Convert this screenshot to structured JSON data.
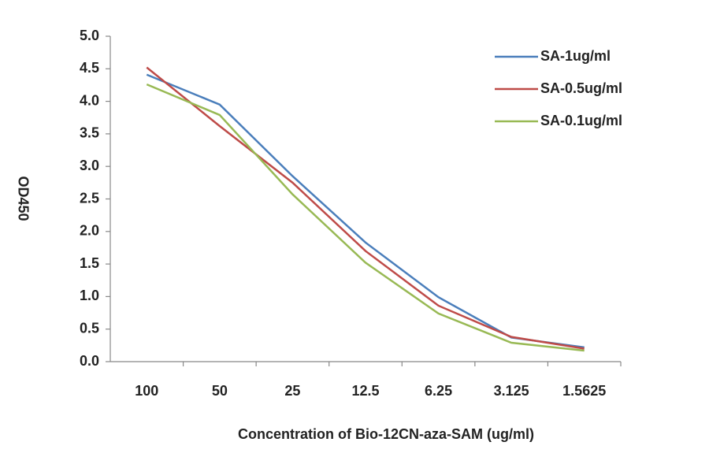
{
  "chart_data": {
    "type": "line",
    "x_label": "Concentration of Bio-12CN-aza-SAM (ug/ml)",
    "y_label": "OD450",
    "categories": [
      "100",
      "50",
      "25",
      "12.5",
      "6.25",
      "3.125",
      "1.5625"
    ],
    "series": [
      {
        "name": "SA-1ug/ml",
        "color": "#4a7ebb",
        "values": [
          4.41,
          3.95,
          2.85,
          1.83,
          0.99,
          0.37,
          0.22
        ]
      },
      {
        "name": "SA-0.5ug/ml",
        "color": "#be4b48",
        "values": [
          4.52,
          3.62,
          2.75,
          1.7,
          0.86,
          0.38,
          0.2
        ]
      },
      {
        "name": "SA-0.1ug/ml",
        "color": "#98b954",
        "values": [
          4.26,
          3.79,
          2.57,
          1.52,
          0.74,
          0.29,
          0.17
        ]
      }
    ],
    "ylim": [
      0,
      5
    ],
    "yticks": [
      {
        "value": 0,
        "label": "0.0"
      },
      0.5,
      {
        "value": 1,
        "label": "1.0"
      },
      1.5,
      {
        "value": 2,
        "label": "2.0"
      },
      2.5,
      {
        "value": 3,
        "label": "3.0"
      },
      3.5,
      {
        "value": 4,
        "label": "4.0"
      },
      4.5,
      {
        "value": 5,
        "label": "5.0"
      }
    ],
    "legend": "top-right",
    "grid": false
  }
}
